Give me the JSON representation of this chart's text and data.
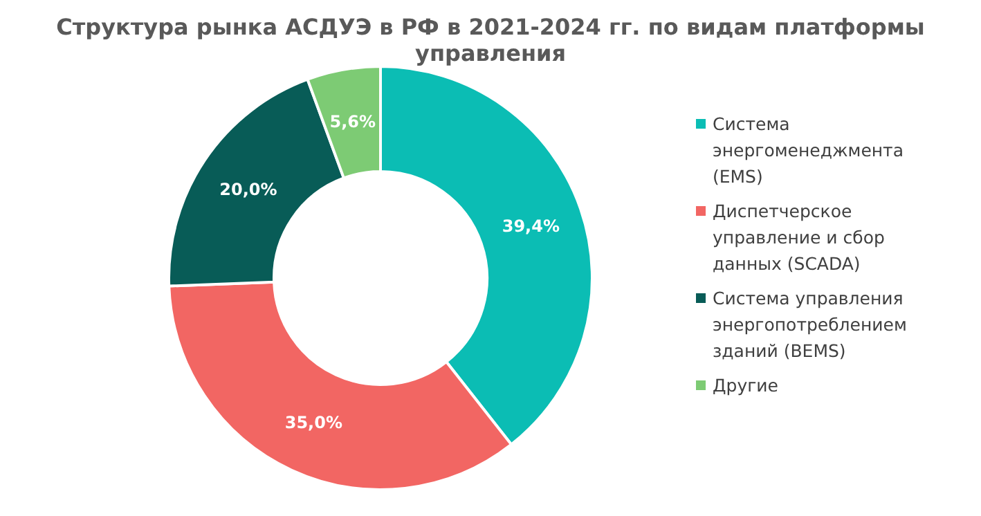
{
  "chart_data": {
    "type": "donut",
    "title": "Структура рынка АСДУЭ в РФ в 2021-2024  гг. по видам платформы управления",
    "categories": [
      "Система энергоменеджмента (EMS)",
      "Диспетчерское управление и сбор данных (SCADA)",
      "Система управления энергопотреблением зданий (BEMS)",
      "Другие"
    ],
    "values": [
      39.4,
      35.0,
      20.0,
      5.6
    ],
    "value_labels": [
      "39,4%",
      "35,0%",
      "20,0%",
      "5,6%"
    ],
    "colors": [
      "#0bbdb4",
      "#f26663",
      "#085c57",
      "#7dcb74"
    ],
    "legend": "right"
  }
}
